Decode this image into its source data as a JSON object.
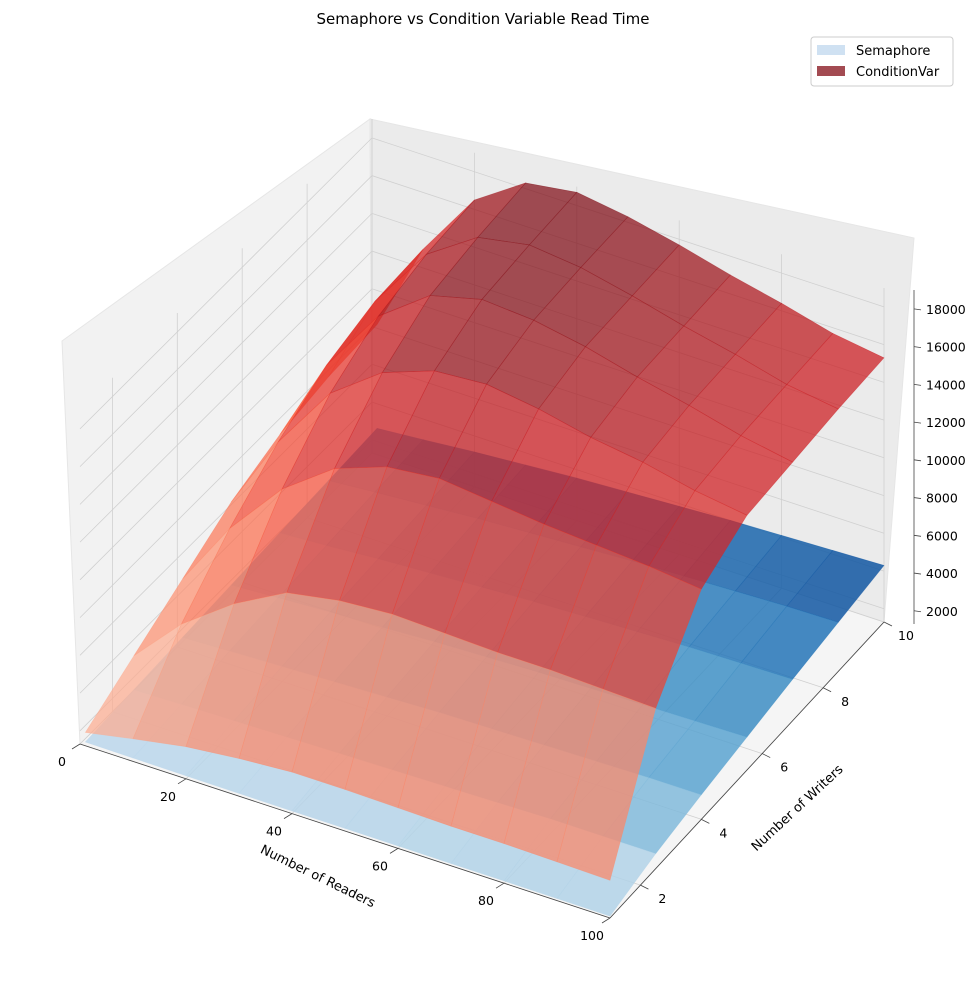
{
  "chart_data": {
    "type": "surface3d",
    "title": "Semaphore vs Condition Variable Read Time",
    "xlabel": "Number of Readers",
    "ylabel": "Number of Writers",
    "zlabel": "",
    "xlim": [
      0,
      100
    ],
    "ylim": [
      1,
      10
    ],
    "zlim": [
      1300,
      19000
    ],
    "x_ticks": [
      0,
      20,
      40,
      60,
      80,
      100
    ],
    "y_ticks": [
      2,
      4,
      6,
      8,
      10
    ],
    "z_ticks": [
      2000,
      4000,
      6000,
      8000,
      10000,
      12000,
      14000,
      16000,
      18000
    ],
    "legend_position": "upper right",
    "grid": true,
    "readers_sampled": [
      1,
      10,
      20,
      30,
      40,
      50,
      60,
      70,
      80,
      90,
      100
    ],
    "writers_sampled": [
      1,
      2.5,
      4,
      5.5,
      7,
      8.5,
      10
    ],
    "series": [
      {
        "name": "Semaphore",
        "colormap": "Blues",
        "legend_color": "#cfe1f2",
        "values": [
          [
            1500,
            1480,
            1460,
            1450,
            1440,
            1440,
            1430,
            1420,
            1420,
            1410,
            1400
          ],
          [
            1700,
            1750,
            1800,
            1850,
            1900,
            1950,
            2000,
            2050,
            2100,
            2100,
            2100
          ],
          [
            1900,
            2000,
            2100,
            2200,
            2300,
            2400,
            2450,
            2500,
            2550,
            2600,
            2600
          ],
          [
            2100,
            2250,
            2400,
            2500,
            2650,
            2750,
            2850,
            2900,
            2950,
            3000,
            3050
          ],
          [
            2300,
            2450,
            2650,
            2800,
            2950,
            3100,
            3200,
            3300,
            3400,
            3450,
            3500
          ],
          [
            2500,
            2700,
            2900,
            3100,
            3250,
            3400,
            3550,
            3650,
            3750,
            3850,
            3900
          ],
          [
            2700,
            2900,
            3150,
            3350,
            3550,
            3700,
            3850,
            4000,
            4100,
            4200,
            4300
          ]
        ]
      },
      {
        "name": "ConditionVar",
        "colormap": "Reds",
        "legend_color": "#a34b52",
        "values": [
          [
            2000,
            2500,
            3000,
            3300,
            3500,
            3500,
            3450,
            3400,
            3400,
            3350,
            3300
          ],
          [
            3500,
            6000,
            8000,
            9500,
            10000,
            10200,
            10100,
            10000,
            10000,
            9900,
            9800
          ],
          [
            5000,
            8500,
            11500,
            13500,
            14500,
            14800,
            14500,
            14200,
            14000,
            13800,
            13500
          ],
          [
            6500,
            10500,
            14000,
            16000,
            17000,
            17200,
            16800,
            16200,
            15800,
            15200,
            14800
          ],
          [
            7500,
            12000,
            15500,
            17500,
            18200,
            18000,
            17500,
            16800,
            16200,
            15500,
            15000
          ],
          [
            8000,
            12800,
            16200,
            18000,
            18500,
            18200,
            17600,
            16900,
            16300,
            15600,
            15200
          ],
          [
            8200,
            13000,
            16500,
            18300,
            18700,
            18300,
            17700,
            17000,
            16400,
            15700,
            15300
          ]
        ]
      }
    ]
  }
}
